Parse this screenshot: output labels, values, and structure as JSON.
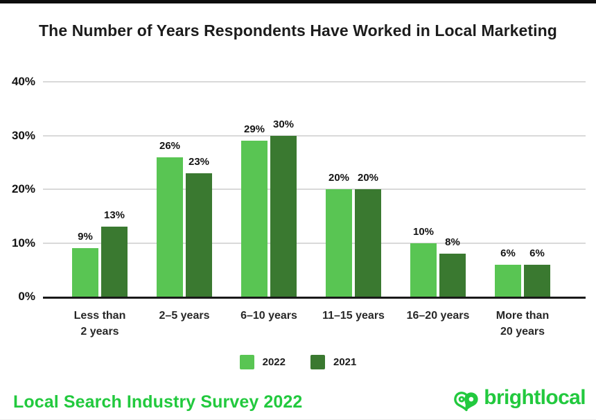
{
  "chart_data": {
    "type": "bar",
    "title": "The Number of Years Respondents Have Worked in Local Marketing",
    "categories": [
      "Less than\n2 years",
      "2–5 years",
      "6–10 years",
      "11–15 years",
      "16–20 years",
      "More than\n20 years"
    ],
    "series": [
      {
        "name": "2022",
        "color": "#59C553",
        "values": [
          9,
          26,
          29,
          20,
          10,
          6
        ]
      },
      {
        "name": "2021",
        "color": "#3A7930",
        "values": [
          13,
          23,
          30,
          20,
          8,
          6
        ]
      }
    ],
    "value_suffix": "%",
    "y_ticks": [
      {
        "value": 40,
        "label": "40%"
      },
      {
        "value": 30,
        "label": "30%"
      },
      {
        "value": 20,
        "label": "20%"
      },
      {
        "value": 10,
        "label": "10%"
      },
      {
        "value": 0,
        "label": "0%"
      }
    ],
    "ylim": [
      0,
      40
    ],
    "grid": true,
    "legend_position": "bottom",
    "xlabel": "",
    "ylabel": ""
  },
  "footer": {
    "source_label": "Local Search Industry Survey 2022",
    "brand": "brightlocal",
    "accent_color": "#22C93E"
  },
  "style": {
    "axis_color": "#191919",
    "gridline_color": "#d9d9d9"
  }
}
